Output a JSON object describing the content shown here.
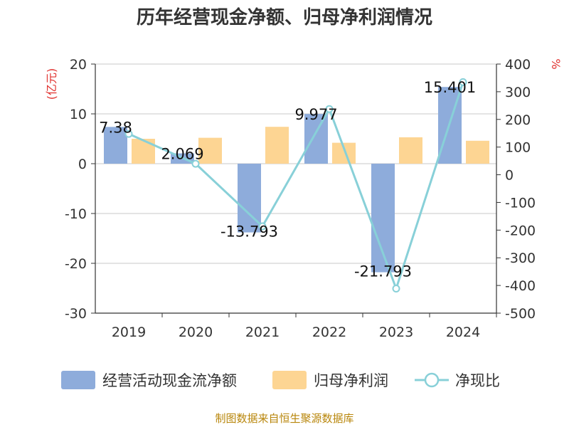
{
  "chart_data": {
    "type": "bar",
    "title": "历年经营现金净额、归母净利润情况",
    "categories": [
      "2019",
      "2020",
      "2021",
      "2022",
      "2023",
      "2024"
    ],
    "left_axis": {
      "unit": "(亿元)",
      "min": -30,
      "max": 20,
      "ticks": [
        "20",
        "10",
        "0",
        "-10",
        "-20",
        "-30"
      ]
    },
    "right_axis": {
      "unit": "%",
      "min": -500,
      "max": 400,
      "ticks": [
        "400",
        "300",
        "200",
        "100",
        "0",
        "-100",
        "-200",
        "-300",
        "-400",
        "-500"
      ]
    },
    "series": [
      {
        "name": "经营活动现金流净额",
        "type": "bar",
        "axis": "left",
        "color": "#8eacdb",
        "values": [
          7.38,
          2.069,
          -13.793,
          9.977,
          -21.793,
          15.401
        ],
        "labels": [
          "7.38",
          "2.069",
          "-13.793",
          "9.977",
          "-21.793",
          "15.401"
        ]
      },
      {
        "name": "归母净利润",
        "type": "bar",
        "axis": "left",
        "color": "#fdd593",
        "values": [
          5.0,
          5.2,
          7.4,
          4.2,
          5.3,
          4.6
        ]
      },
      {
        "name": "净现比",
        "type": "line",
        "axis": "right",
        "color": "#88d0d8",
        "values": [
          147.6,
          39.8,
          -186.4,
          237.5,
          -411.2,
          334.8
        ]
      }
    ],
    "source": "制图数据来自恒生聚源数据库"
  }
}
